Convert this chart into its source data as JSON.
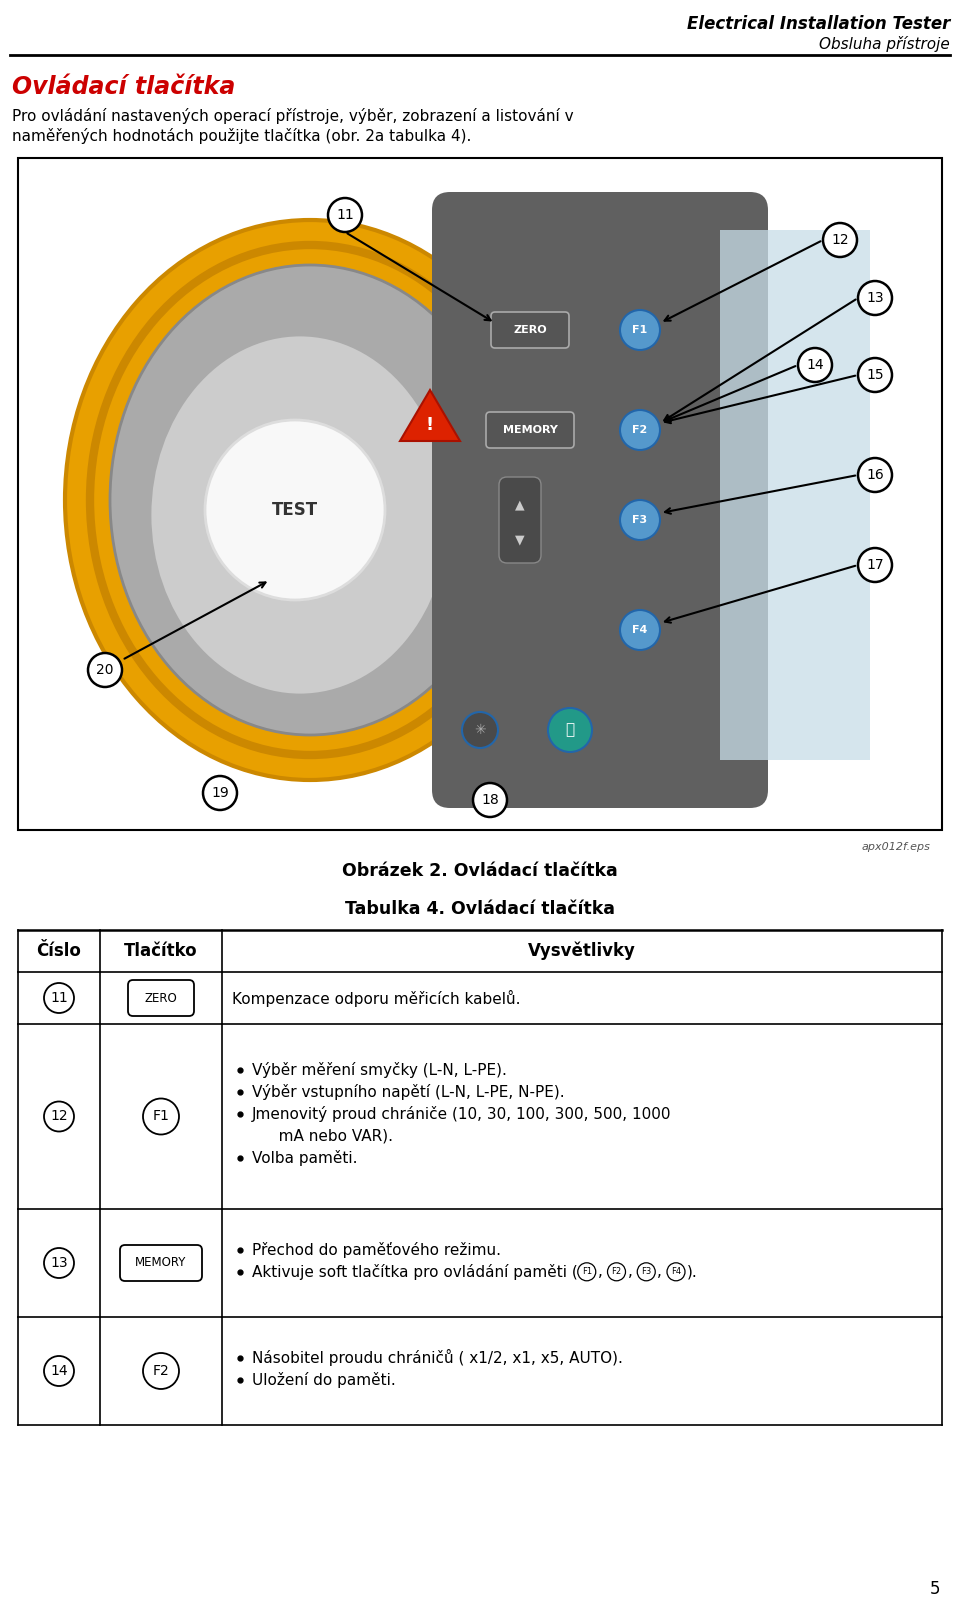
{
  "header_title": "Electrical Installation Tester",
  "header_subtitle": "Obsluha přístroje",
  "section_title": "Ovládací tlačítka",
  "section_title_color": "#cc0000",
  "intro_text_1": "Pro ovládání nastavených operací přístroje, výběr, zobrazení a listování v",
  "intro_text_2": "naměřených hodnotách použijte tlačítka (obr. 2a tabulka 4).",
  "fig_caption": "Obrázek 2. Ovládací tlačítka",
  "fig_source": "apx012f.eps",
  "table_caption": "Tabulka 4. Ovládací tlačítka",
  "table_headers": [
    "Číslo",
    "Tlačítko",
    "Vysvětlivky"
  ],
  "page_number": "5",
  "bg_color": "#ffffff",
  "yellow_outer": "#E8A000",
  "yellow_mid": "#F0B020",
  "yellow_inner_border": "#CC8800",
  "dark_panel": "#555555",
  "dark_keyboard": "#606060",
  "screen_color": "#c8dde8",
  "btn_blue": "#5599cc",
  "btn_teal": "#229988"
}
